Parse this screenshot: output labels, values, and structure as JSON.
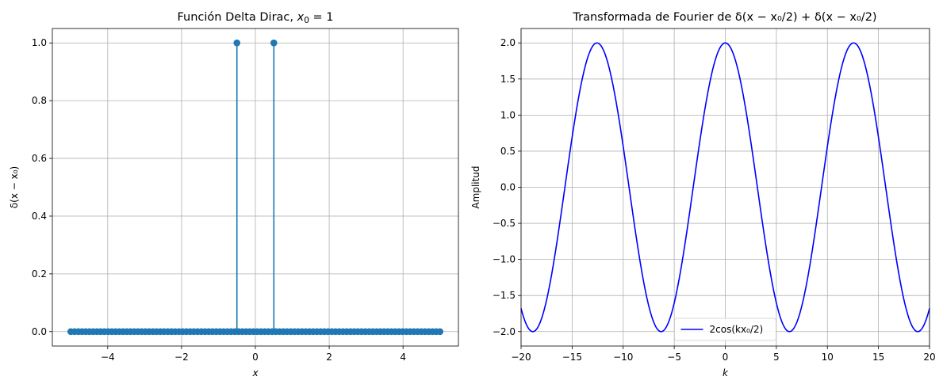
{
  "chart_data": [
    {
      "type": "stem",
      "title": "Función Delta Dirac, x₀ = 1",
      "title_parts": [
        "Función Delta Dirac, ",
        "x",
        "0",
        " = 1"
      ],
      "xlabel": "x",
      "ylabel": "δ(x − x₀)",
      "xlim": [
        -5.5,
        5.5
      ],
      "ylim": [
        -0.05,
        1.05
      ],
      "xticks": [
        -4,
        -2,
        0,
        2,
        4
      ],
      "xtick_labels": [
        "−4",
        "−2",
        "0",
        "2",
        "4"
      ],
      "yticks": [
        0.0,
        0.2,
        0.4,
        0.6,
        0.8,
        1.0
      ],
      "ytick_labels": [
        "0.0",
        "0.2",
        "0.4",
        "0.6",
        "0.8",
        "1.0"
      ],
      "grid": true,
      "color": "#1f77b4",
      "x_start": -5,
      "x_end": 5,
      "num_points": 100,
      "spikes": [
        {
          "x": -0.5,
          "y": 1.0
        },
        {
          "x": 0.5,
          "y": 1.0
        }
      ]
    },
    {
      "type": "line",
      "title": "Transformada de Fourier de δ(x − x₀/2) + δ(x − x₀/2)",
      "xlabel": "k",
      "ylabel": "Amplitud",
      "xlim": [
        -20,
        20
      ],
      "ylim": [
        -2.2,
        2.2
      ],
      "xticks": [
        -20,
        -15,
        -10,
        -5,
        0,
        5,
        10,
        15,
        20
      ],
      "xtick_labels": [
        "−20",
        "−15",
        "−10",
        "−5",
        "0",
        "5",
        "10",
        "15",
        "20"
      ],
      "yticks": [
        -2.0,
        -1.5,
        -1.0,
        -0.5,
        0.0,
        0.5,
        1.0,
        1.5,
        2.0
      ],
      "ytick_labels": [
        "−2.0",
        "−1.5",
        "−1.0",
        "−0.5",
        "0.0",
        "0.5",
        "1.0",
        "1.5",
        "2.0"
      ],
      "grid": true,
      "legend_position": "lower-center",
      "series": [
        {
          "name": "2cos(kx₀/2)",
          "color": "#0000ff",
          "function": "2*cos(k*0.5)",
          "x_start": -20,
          "x_end": 20
        }
      ]
    }
  ]
}
